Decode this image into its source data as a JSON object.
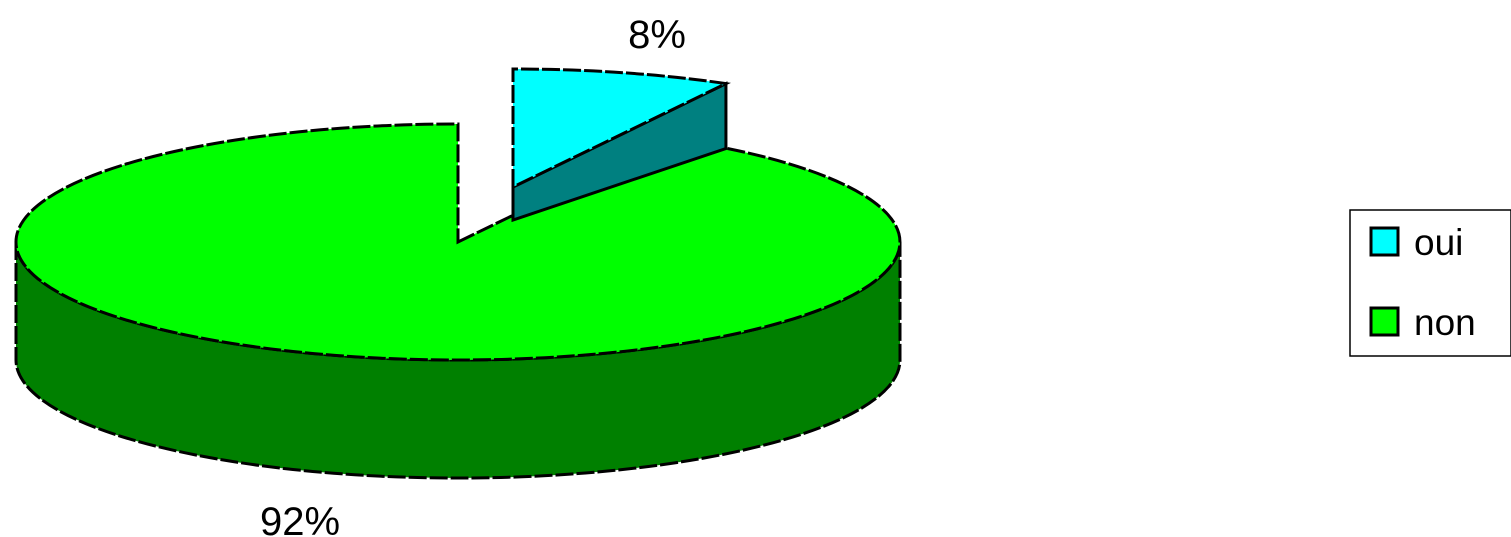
{
  "chart_data": {
    "type": "pie",
    "style": "3d-exploded",
    "categories": [
      "oui",
      "non"
    ],
    "values": [
      8,
      92
    ],
    "data_labels": [
      "8%",
      "92%"
    ],
    "colors": {
      "oui": {
        "top": "#00FFFF",
        "side": "#008080"
      },
      "non": {
        "top": "#00FF00",
        "side": "#008000"
      }
    },
    "legend": {
      "position": "right",
      "entries": [
        "oui",
        "non"
      ]
    }
  }
}
